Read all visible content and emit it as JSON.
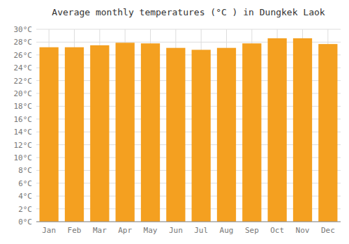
{
  "chart_data": {
    "type": "bar",
    "title": "Average monthly temperatures (°C ) in Dungkek Laok",
    "categories": [
      "Jan",
      "Feb",
      "Mar",
      "Apr",
      "May",
      "Jun",
      "Jul",
      "Aug",
      "Sep",
      "Oct",
      "Nov",
      "Dec"
    ],
    "values": [
      27.2,
      27.2,
      27.5,
      27.9,
      27.8,
      27.1,
      26.8,
      27.1,
      27.8,
      28.6,
      28.6,
      27.7
    ],
    "color": "#F4A020",
    "ylim": [
      0,
      30
    ],
    "yticks": [
      {
        "value": 0,
        "label": "0°C"
      },
      {
        "value": 2,
        "label": "2°C"
      },
      {
        "value": 4,
        "label": "4°C"
      },
      {
        "value": 6,
        "label": "6°C"
      },
      {
        "value": 8,
        "label": "8°C"
      },
      {
        "value": 10,
        "label": "10°C"
      },
      {
        "value": 12,
        "label": "12°C"
      },
      {
        "value": 14,
        "label": "14°C"
      },
      {
        "value": 16,
        "label": "16°C"
      },
      {
        "value": 18,
        "label": "18°C"
      },
      {
        "value": 20,
        "label": "20°C"
      },
      {
        "value": 22,
        "label": "22°C"
      },
      {
        "value": 24,
        "label": "24°C"
      },
      {
        "value": 26,
        "label": "26°C"
      },
      {
        "value": 28,
        "label": "28°C"
      },
      {
        "value": 30,
        "label": "30°C"
      }
    ],
    "grid": true
  }
}
